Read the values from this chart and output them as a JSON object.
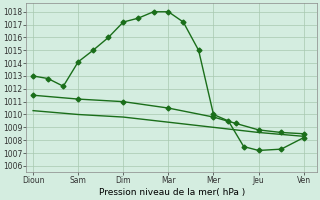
{
  "line1_x": [
    0,
    0.33,
    0.67,
    1.0,
    1.33,
    1.67,
    2.0,
    2.33,
    2.67,
    3.0,
    3.33,
    3.67,
    4.0,
    4.33,
    4.67,
    5.0,
    5.5,
    6.0
  ],
  "line1_y": [
    1013.0,
    1012.8,
    1012.2,
    1014.1,
    1015.0,
    1016.0,
    1017.2,
    1017.5,
    1018.0,
    1018.0,
    1017.2,
    1015.0,
    1010.0,
    1009.5,
    1007.5,
    1007.2,
    1007.3,
    1008.2
  ],
  "line2_x": [
    0,
    1.0,
    2.0,
    3.0,
    4.0,
    4.5,
    5.0,
    5.5,
    6.0
  ],
  "line2_y": [
    1011.5,
    1011.2,
    1011.0,
    1010.5,
    1009.8,
    1009.3,
    1008.8,
    1008.6,
    1008.5
  ],
  "line3_x": [
    0,
    1.0,
    2.0,
    3.0,
    4.0,
    5.0,
    6.0
  ],
  "line3_y": [
    1010.3,
    1010.0,
    1009.8,
    1009.4,
    1009.0,
    1008.6,
    1008.3
  ],
  "xtick_positions": [
    0,
    1,
    2,
    3,
    4,
    5,
    6
  ],
  "xtick_labels": [
    "Dioun",
    "Sam",
    "Dim",
    "Mar",
    "Mer",
    "Jeu",
    "Ven"
  ],
  "ytick_positions": [
    1006,
    1007,
    1008,
    1009,
    1010,
    1011,
    1012,
    1013,
    1014,
    1015,
    1016,
    1017,
    1018
  ],
  "ylim": [
    1005.5,
    1018.7
  ],
  "xlim": [
    -0.15,
    6.3
  ],
  "xlabel": "Pression niveau de la mer( hPa )",
  "line_color": "#1a6e1a",
  "bg_color": "#d4ede0",
  "grid_color": "#a8c8b0",
  "marker": "D",
  "marker_size": 2.5,
  "line_width": 1.0,
  "tick_fontsize": 5.5,
  "xlabel_fontsize": 6.5
}
